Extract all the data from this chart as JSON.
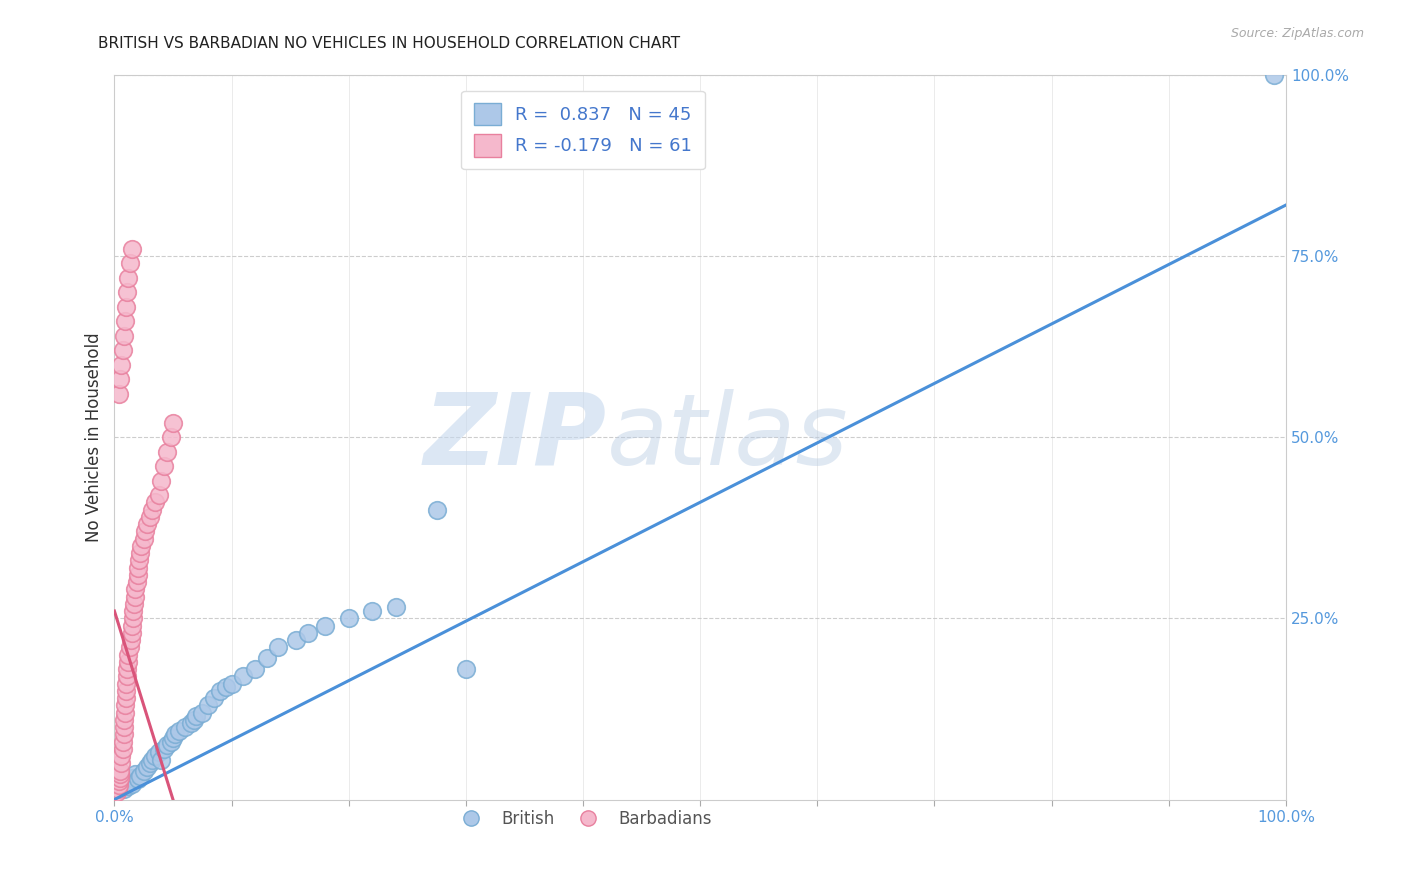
{
  "title": "BRITISH VS BARBADIAN NO VEHICLES IN HOUSEHOLD CORRELATION CHART",
  "source": "Source: ZipAtlas.com",
  "ylabel": "No Vehicles in Household",
  "watermark_zip": "ZIP",
  "watermark_atlas": "atlas",
  "blue_R": 0.837,
  "blue_N": 45,
  "pink_R": -0.179,
  "pink_N": 61,
  "blue_color": "#adc8e8",
  "blue_edge": "#7aadd4",
  "pink_color": "#f5b8cc",
  "pink_edge": "#e8809e",
  "blue_line_color": "#4a90d9",
  "pink_line_color": "#d9547a",
  "background": "#ffffff",
  "grid_color": "#c8c8c8",
  "tick_color": "#5599dd",
  "legend_color": "#4477cc",
  "xlim": [
    0,
    1
  ],
  "ylim": [
    0,
    1
  ],
  "xticks": [
    0,
    0.1,
    0.2,
    0.3,
    0.4,
    0.5,
    0.6,
    0.7,
    0.8,
    0.9,
    1.0
  ],
  "yticks": [
    0.25,
    0.5,
    0.75,
    1.0
  ],
  "blue_scatter_x": [
    0.005,
    0.008,
    0.01,
    0.012,
    0.015,
    0.015,
    0.018,
    0.02,
    0.022,
    0.025,
    0.028,
    0.03,
    0.032,
    0.035,
    0.038,
    0.04,
    0.042,
    0.045,
    0.048,
    0.05,
    0.052,
    0.055,
    0.06,
    0.065,
    0.068,
    0.07,
    0.075,
    0.08,
    0.085,
    0.09,
    0.095,
    0.1,
    0.11,
    0.12,
    0.13,
    0.14,
    0.155,
    0.165,
    0.18,
    0.2,
    0.22,
    0.24,
    0.275,
    0.3,
    0.99
  ],
  "blue_scatter_y": [
    0.02,
    0.015,
    0.025,
    0.018,
    0.03,
    0.022,
    0.035,
    0.028,
    0.032,
    0.04,
    0.045,
    0.05,
    0.055,
    0.06,
    0.065,
    0.055,
    0.07,
    0.075,
    0.08,
    0.085,
    0.09,
    0.095,
    0.1,
    0.105,
    0.11,
    0.115,
    0.12,
    0.13,
    0.14,
    0.15,
    0.155,
    0.16,
    0.17,
    0.18,
    0.195,
    0.21,
    0.22,
    0.23,
    0.24,
    0.25,
    0.26,
    0.265,
    0.4,
    0.18,
    1.0
  ],
  "pink_scatter_x": [
    0.002,
    0.003,
    0.004,
    0.004,
    0.005,
    0.005,
    0.005,
    0.006,
    0.006,
    0.007,
    0.007,
    0.008,
    0.008,
    0.008,
    0.009,
    0.009,
    0.01,
    0.01,
    0.01,
    0.011,
    0.011,
    0.012,
    0.012,
    0.013,
    0.014,
    0.015,
    0.015,
    0.016,
    0.016,
    0.017,
    0.018,
    0.018,
    0.019,
    0.02,
    0.02,
    0.021,
    0.022,
    0.023,
    0.025,
    0.026,
    0.028,
    0.03,
    0.032,
    0.035,
    0.038,
    0.04,
    0.042,
    0.045,
    0.048,
    0.05,
    0.004,
    0.005,
    0.006,
    0.007,
    0.008,
    0.009,
    0.01,
    0.011,
    0.012,
    0.013,
    0.015
  ],
  "pink_scatter_y": [
    0.01,
    0.015,
    0.02,
    0.025,
    0.03,
    0.035,
    0.04,
    0.05,
    0.06,
    0.07,
    0.08,
    0.09,
    0.1,
    0.11,
    0.12,
    0.13,
    0.14,
    0.15,
    0.16,
    0.17,
    0.18,
    0.19,
    0.2,
    0.21,
    0.22,
    0.23,
    0.24,
    0.25,
    0.26,
    0.27,
    0.28,
    0.29,
    0.3,
    0.31,
    0.32,
    0.33,
    0.34,
    0.35,
    0.36,
    0.37,
    0.38,
    0.39,
    0.4,
    0.41,
    0.42,
    0.44,
    0.46,
    0.48,
    0.5,
    0.52,
    0.56,
    0.58,
    0.6,
    0.62,
    0.64,
    0.66,
    0.68,
    0.7,
    0.72,
    0.74,
    0.76
  ],
  "blue_line_x": [
    0.0,
    1.0
  ],
  "blue_line_y": [
    0.0,
    0.82
  ],
  "pink_line_x": [
    0.0,
    0.05
  ],
  "pink_line_y": [
    0.26,
    0.0
  ]
}
